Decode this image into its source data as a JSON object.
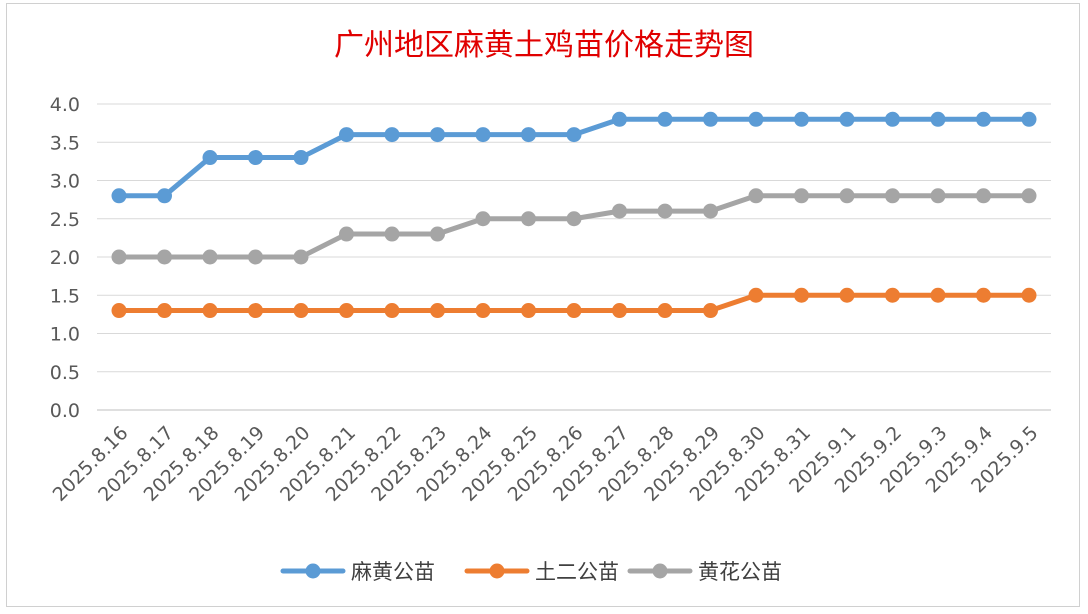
{
  "chart_data": {
    "type": "line",
    "title": "广州地区麻黄土鸡苗价格走势图",
    "xlabel": "",
    "ylabel": "",
    "ylim": [
      0,
      4.0
    ],
    "yticks": [
      "0.0",
      "0.5",
      "1.0",
      "1.5",
      "2.0",
      "2.5",
      "3.0",
      "3.5",
      "4.0"
    ],
    "grid": true,
    "legend_position": "bottom",
    "categories": [
      "2025.8.16",
      "2025.8.17",
      "2025.8.18",
      "2025.8.19",
      "2025.8.20",
      "2025.8.21",
      "2025.8.22",
      "2025.8.23",
      "2025.8.24",
      "2025.8.25",
      "2025.8.26",
      "2025.8.27",
      "2025.8.28",
      "2025.8.29",
      "2025.8.30",
      "2025.8.31",
      "2025.9.1",
      "2025.9.2",
      "2025.9.3",
      "2025.9.4",
      "2025.9.5"
    ],
    "series": [
      {
        "name": "麻黄公苗",
        "color": "#5b9bd5",
        "values": [
          2.8,
          2.8,
          3.3,
          3.3,
          3.3,
          3.6,
          3.6,
          3.6,
          3.6,
          3.6,
          3.6,
          3.8,
          3.8,
          3.8,
          3.8,
          3.8,
          3.8,
          3.8,
          3.8,
          3.8,
          3.8
        ]
      },
      {
        "name": "土二公苗",
        "color": "#ed7d31",
        "values": [
          1.3,
          1.3,
          1.3,
          1.3,
          1.3,
          1.3,
          1.3,
          1.3,
          1.3,
          1.3,
          1.3,
          1.3,
          1.3,
          1.3,
          1.5,
          1.5,
          1.5,
          1.5,
          1.5,
          1.5,
          1.5
        ]
      },
      {
        "name": "黄花公苗",
        "color": "#a5a5a5",
        "values": [
          2.0,
          2.0,
          2.0,
          2.0,
          2.0,
          2.3,
          2.3,
          2.3,
          2.5,
          2.5,
          2.5,
          2.6,
          2.6,
          2.6,
          2.8,
          2.8,
          2.8,
          2.8,
          2.8,
          2.8,
          2.8
        ]
      }
    ]
  }
}
